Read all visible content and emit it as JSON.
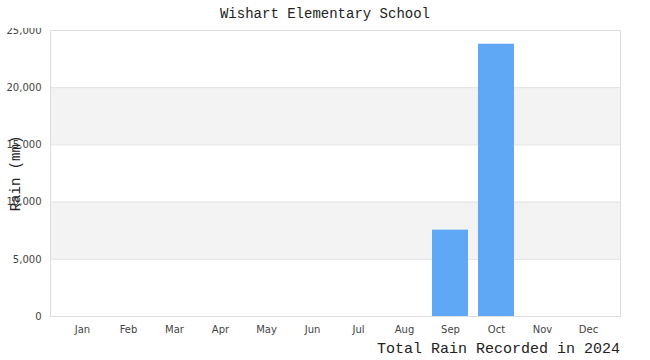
{
  "chart_data": {
    "type": "bar",
    "title": "Wishart Elementary School",
    "xlabel": "Total Rain Recorded in 2024",
    "ylabel": "Rain (mm)",
    "categories": [
      "Jan",
      "Feb",
      "Mar",
      "Apr",
      "May",
      "Jun",
      "Jul",
      "Aug",
      "Sep",
      "Oct",
      "Nov",
      "Dec"
    ],
    "values": [
      0,
      0,
      0,
      0,
      0,
      0,
      0,
      0,
      7550,
      23800,
      0,
      0
    ],
    "color": "#5fa8f5",
    "ylim": [
      0,
      25000
    ],
    "yticks": [
      0,
      5000,
      10000,
      15000,
      20000,
      25000
    ],
    "grid": true
  }
}
